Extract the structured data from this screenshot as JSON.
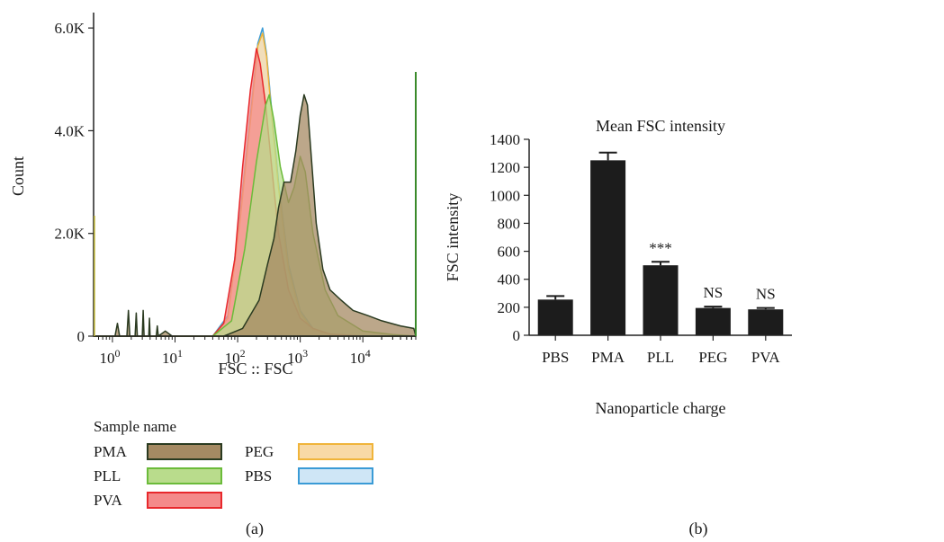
{
  "panel_labels": {
    "a": "(a)",
    "b": "(b)"
  },
  "chart_data": [
    {
      "type": "area",
      "panel": "(a)",
      "title": "",
      "xlabel": "FSC :: FSC",
      "ylabel": "Count",
      "xscale": "log",
      "xlim": [
        0.5,
        70000
      ],
      "ylim": [
        0,
        6300
      ],
      "y_ticks": [
        0,
        2000,
        4000,
        6000
      ],
      "y_tick_labels": [
        "0",
        "2.0K",
        "4.0K",
        "6.0K"
      ],
      "x_ticks": [
        {
          "base": "10",
          "exp": "0",
          "value": 1
        },
        {
          "base": "10",
          "exp": "1",
          "value": 10
        },
        {
          "base": "10",
          "exp": "2",
          "value": 100
        },
        {
          "base": "10",
          "exp": "3",
          "value": 1000
        },
        {
          "base": "10",
          "exp": "4",
          "value": 10000
        }
      ],
      "grid": false,
      "legend_title": "Sample name",
      "legend_position": "bottom",
      "series": [
        {
          "name": "PBS",
          "fill": "#cfe6f6",
          "stroke": "#3a9bd6",
          "points": [
            [
              0.5,
              0
            ],
            [
              40,
              0
            ],
            [
              70,
              400
            ],
            [
              110,
              2400
            ],
            [
              160,
              4300
            ],
            [
              210,
              5700
            ],
            [
              250,
              6000
            ],
            [
              290,
              5500
            ],
            [
              350,
              4400
            ],
            [
              450,
              3000
            ],
            [
              650,
              1400
            ],
            [
              1000,
              500
            ],
            [
              1600,
              150
            ],
            [
              3000,
              40
            ],
            [
              10000,
              0
            ],
            [
              70000,
              0
            ]
          ]
        },
        {
          "name": "PEG",
          "fill": "#f8d9a6",
          "stroke": "#f0b43a",
          "points": [
            [
              0.5,
              0
            ],
            [
              40,
              0
            ],
            [
              70,
              350
            ],
            [
              110,
              2300
            ],
            [
              160,
              4200
            ],
            [
              210,
              5650
            ],
            [
              250,
              5900
            ],
            [
              290,
              5450
            ],
            [
              350,
              4300
            ],
            [
              450,
              2900
            ],
            [
              650,
              1300
            ],
            [
              1000,
              450
            ],
            [
              1600,
              120
            ],
            [
              3000,
              30
            ],
            [
              10000,
              0
            ],
            [
              70000,
              0
            ]
          ]
        },
        {
          "name": "PVA",
          "fill": "#f48a8a",
          "stroke": "#e8282c",
          "points": [
            [
              0.5,
              0
            ],
            [
              40,
              0
            ],
            [
              60,
              250
            ],
            [
              90,
              1500
            ],
            [
              120,
              3300
            ],
            [
              160,
              4800
            ],
            [
              200,
              5600
            ],
            [
              230,
              5300
            ],
            [
              280,
              4500
            ],
            [
              350,
              3300
            ],
            [
              450,
              2000
            ],
            [
              650,
              900
            ],
            [
              1000,
              350
            ],
            [
              1600,
              150
            ],
            [
              3000,
              40
            ],
            [
              10000,
              0
            ],
            [
              70000,
              0
            ]
          ]
        },
        {
          "name": "PLL",
          "fill": "#b9dc8c",
          "stroke": "#6bbb3a",
          "points": [
            [
              0.5,
              0
            ],
            [
              40,
              0
            ],
            [
              80,
              300
            ],
            [
              130,
              1700
            ],
            [
              200,
              3400
            ],
            [
              280,
              4500
            ],
            [
              320,
              4700
            ],
            [
              380,
              4200
            ],
            [
              480,
              3300
            ],
            [
              650,
              2600
            ],
            [
              800,
              2900
            ],
            [
              1000,
              3500
            ],
            [
              1200,
              3200
            ],
            [
              1600,
              2000
            ],
            [
              2500,
              900
            ],
            [
              4000,
              400
            ],
            [
              10000,
              100
            ],
            [
              30000,
              30
            ],
            [
              70000,
              0
            ]
          ]
        },
        {
          "name": "PMA",
          "fill": "#a58a63",
          "stroke": "#2a3a20",
          "points": [
            [
              0.5,
              0
            ],
            [
              1.1,
              0
            ],
            [
              1.2,
              250
            ],
            [
              1.3,
              0
            ],
            [
              1.7,
              0
            ],
            [
              1.8,
              500
            ],
            [
              1.9,
              0
            ],
            [
              2.3,
              0
            ],
            [
              2.4,
              450
            ],
            [
              2.5,
              0
            ],
            [
              3.0,
              0
            ],
            [
              3.1,
              500
            ],
            [
              3.2,
              0
            ],
            [
              3.8,
              0
            ],
            [
              3.9,
              350
            ],
            [
              4.0,
              0
            ],
            [
              5,
              0
            ],
            [
              5.2,
              200
            ],
            [
              5.4,
              0
            ],
            [
              7,
              100
            ],
            [
              9,
              0
            ],
            [
              60,
              0
            ],
            [
              120,
              150
            ],
            [
              220,
              700
            ],
            [
              300,
              1400
            ],
            [
              380,
              1900
            ],
            [
              450,
              2500
            ],
            [
              550,
              3000
            ],
            [
              700,
              3000
            ],
            [
              850,
              3600
            ],
            [
              1000,
              4300
            ],
            [
              1150,
              4700
            ],
            [
              1300,
              4500
            ],
            [
              1500,
              3500
            ],
            [
              1800,
              2200
            ],
            [
              2300,
              1300
            ],
            [
              3000,
              900
            ],
            [
              4500,
              700
            ],
            [
              7000,
              500
            ],
            [
              12000,
              400
            ],
            [
              20000,
              300
            ],
            [
              40000,
              200
            ],
            [
              65000,
              150
            ],
            [
              70000,
              0
            ]
          ]
        }
      ]
    },
    {
      "type": "bar",
      "panel": "(b)",
      "title": "Mean FSC intensity",
      "xlabel": "Nanoparticle charge",
      "ylabel": "FSC intensity",
      "categories": [
        "PBS",
        "PMA",
        "PLL",
        "PEG",
        "PVA"
      ],
      "values": [
        255,
        1250,
        500,
        195,
        185
      ],
      "error": [
        25,
        55,
        25,
        10,
        10
      ],
      "annotations": [
        "",
        "",
        "***",
        "NS",
        "NS"
      ],
      "ylim": [
        0,
        1400
      ],
      "y_ticks": [
        0,
        200,
        400,
        600,
        800,
        1000,
        1200,
        1400
      ],
      "bar_color": "#1c1c1c",
      "grid": false
    }
  ]
}
